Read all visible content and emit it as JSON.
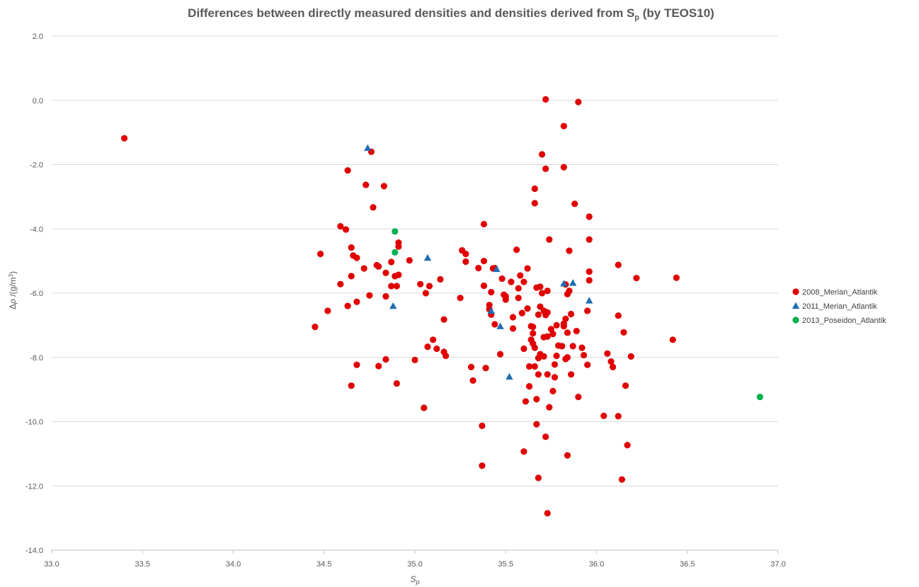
{
  "chart_data": {
    "type": "scatter",
    "title": "Differences between directly measured densities and densities derived from S",
    "title_sub": "p",
    "title_suffix": " (by TEOS10)",
    "xlabel": "S",
    "xlabel_sub": "p",
    "ylabel_prefix": "Δ",
    "ylabel_rho": "ρ",
    "ylabel_suffix": " /(g/m",
    "ylabel_sup": "3",
    "ylabel_close": ")",
    "xlim": [
      33.0,
      37.0
    ],
    "ylim": [
      -14.0,
      2.0
    ],
    "x_ticks": [
      "33.0",
      "33.5",
      "34.0",
      "34.5",
      "35.0",
      "35.5",
      "36.0",
      "36.5",
      "37.0"
    ],
    "y_ticks": [
      "2.0",
      "0.0",
      "-2.0",
      "-4.0",
      "-6.0",
      "-8.0",
      "-10.0",
      "-12.0",
      "-14.0"
    ],
    "grid": "horizontal",
    "legend_position": "right",
    "series": [
      {
        "name": "2008_Merian_Atlantik",
        "color": "#e00000",
        "marker": "circle",
        "points": [
          [
            33.4,
            -1.18
          ],
          [
            34.45,
            -7.05
          ],
          [
            34.48,
            -4.78
          ],
          [
            34.52,
            -6.55
          ],
          [
            34.59,
            -3.92
          ],
          [
            34.59,
            -5.72
          ],
          [
            34.62,
            -4.02
          ],
          [
            34.63,
            -2.18
          ],
          [
            34.63,
            -6.4
          ],
          [
            34.65,
            -4.58
          ],
          [
            34.66,
            -4.83
          ],
          [
            34.65,
            -5.47
          ],
          [
            34.65,
            -8.88
          ],
          [
            34.68,
            -4.9
          ],
          [
            34.68,
            -6.27
          ],
          [
            34.68,
            -8.23
          ],
          [
            34.72,
            -5.23
          ],
          [
            34.73,
            -2.63
          ],
          [
            34.75,
            -6.07
          ],
          [
            34.76,
            -1.6
          ],
          [
            34.77,
            -3.33
          ],
          [
            34.79,
            -5.13
          ],
          [
            34.8,
            -5.17
          ],
          [
            34.8,
            -8.27
          ],
          [
            34.83,
            -2.67
          ],
          [
            34.84,
            -5.37
          ],
          [
            34.84,
            -6.1
          ],
          [
            34.84,
            -8.06
          ],
          [
            34.87,
            -5.03
          ],
          [
            34.87,
            -5.78
          ],
          [
            34.89,
            -5.47
          ],
          [
            34.9,
            -5.78
          ],
          [
            34.9,
            -8.81
          ],
          [
            34.91,
            -4.43
          ],
          [
            34.91,
            -4.55
          ],
          [
            34.91,
            -5.43
          ],
          [
            34.97,
            -4.98
          ],
          [
            35.0,
            -8.08
          ],
          [
            35.03,
            -5.72
          ],
          [
            35.05,
            -9.57
          ],
          [
            35.06,
            -6.0
          ],
          [
            35.07,
            -7.67
          ],
          [
            35.08,
            -5.78
          ],
          [
            35.1,
            -7.45
          ],
          [
            35.12,
            -7.73
          ],
          [
            35.14,
            -5.57
          ],
          [
            35.16,
            -6.82
          ],
          [
            35.16,
            -7.83
          ],
          [
            35.17,
            -7.95
          ],
          [
            35.25,
            -6.15
          ],
          [
            35.26,
            -4.67
          ],
          [
            35.28,
            -4.78
          ],
          [
            35.28,
            -5.02
          ],
          [
            35.31,
            -8.3
          ],
          [
            35.32,
            -8.72
          ],
          [
            35.35,
            -5.22
          ],
          [
            35.37,
            -10.13
          ],
          [
            35.37,
            -11.37
          ],
          [
            35.38,
            -3.85
          ],
          [
            35.38,
            -5.0
          ],
          [
            35.38,
            -5.77
          ],
          [
            35.39,
            -8.33
          ],
          [
            35.41,
            -6.37
          ],
          [
            35.41,
            -6.5
          ],
          [
            35.42,
            -5.97
          ],
          [
            35.42,
            -6.67
          ],
          [
            35.43,
            -5.23
          ],
          [
            35.44,
            -5.22
          ],
          [
            35.44,
            -6.97
          ],
          [
            35.47,
            -7.9
          ],
          [
            35.48,
            -5.55
          ],
          [
            35.49,
            -6.05
          ],
          [
            35.5,
            -6.1
          ],
          [
            35.5,
            -6.2
          ],
          [
            35.53,
            -5.65
          ],
          [
            35.54,
            -6.75
          ],
          [
            35.54,
            -7.1
          ],
          [
            35.56,
            -4.65
          ],
          [
            35.57,
            -5.85
          ],
          [
            35.57,
            -6.15
          ],
          [
            35.58,
            -5.45
          ],
          [
            35.59,
            -6.62
          ],
          [
            35.6,
            -5.65
          ],
          [
            35.6,
            -7.73
          ],
          [
            35.6,
            -10.93
          ],
          [
            35.61,
            -9.37
          ],
          [
            35.62,
            -5.23
          ],
          [
            35.62,
            -6.48
          ],
          [
            35.63,
            -8.28
          ],
          [
            35.63,
            -8.9
          ],
          [
            35.64,
            -7.03
          ],
          [
            35.64,
            -7.45
          ],
          [
            35.65,
            -7.57
          ],
          [
            35.65,
            -7.25
          ],
          [
            35.65,
            -7.05
          ],
          [
            35.66,
            -2.75
          ],
          [
            35.66,
            -3.2
          ],
          [
            35.66,
            -7.7
          ],
          [
            35.66,
            -8.28
          ],
          [
            35.67,
            -5.83
          ],
          [
            35.67,
            -9.3
          ],
          [
            35.67,
            -10.08
          ],
          [
            35.68,
            -6.67
          ],
          [
            35.68,
            -8.02
          ],
          [
            35.68,
            -8.53
          ],
          [
            35.68,
            -11.75
          ],
          [
            35.69,
            -6.42
          ],
          [
            35.69,
            -7.9
          ],
          [
            35.69,
            -5.8
          ],
          [
            35.7,
            -1.68
          ],
          [
            35.7,
            -6.0
          ],
          [
            35.71,
            -7.37
          ],
          [
            35.71,
            -7.97
          ],
          [
            35.71,
            -6.55
          ],
          [
            35.72,
            0.03
          ],
          [
            35.72,
            -2.13
          ],
          [
            35.72,
            -6.68
          ],
          [
            35.72,
            -10.47
          ],
          [
            35.73,
            -5.93
          ],
          [
            35.73,
            -6.6
          ],
          [
            35.73,
            -7.35
          ],
          [
            35.73,
            -8.53
          ],
          [
            35.73,
            -12.85
          ],
          [
            35.74,
            -4.33
          ],
          [
            35.74,
            -9.55
          ],
          [
            35.75,
            -7.12
          ],
          [
            35.76,
            -7.27
          ],
          [
            35.76,
            -9.05
          ],
          [
            35.77,
            -8.62
          ],
          [
            35.77,
            -8.22
          ],
          [
            35.78,
            -7.0
          ],
          [
            35.78,
            -7.95
          ],
          [
            35.79,
            -7.63
          ],
          [
            35.81,
            -7.65
          ],
          [
            35.82,
            -0.8
          ],
          [
            35.82,
            -6.95
          ],
          [
            35.82,
            -7.03
          ],
          [
            35.82,
            -2.08
          ],
          [
            35.83,
            -5.73
          ],
          [
            35.83,
            -6.8
          ],
          [
            35.83,
            -8.05
          ],
          [
            35.84,
            -6.03
          ],
          [
            35.84,
            -7.23
          ],
          [
            35.84,
            -8.0
          ],
          [
            35.84,
            -11.05
          ],
          [
            35.85,
            -4.68
          ],
          [
            35.85,
            -5.93
          ],
          [
            35.86,
            -8.53
          ],
          [
            35.86,
            -6.65
          ],
          [
            35.87,
            -7.65
          ],
          [
            35.88,
            -3.22
          ],
          [
            35.89,
            -7.18
          ],
          [
            35.9,
            -0.05
          ],
          [
            35.9,
            -9.23
          ],
          [
            35.92,
            -7.7
          ],
          [
            35.93,
            -7.93
          ],
          [
            35.95,
            -6.55
          ],
          [
            35.95,
            -8.23
          ],
          [
            35.96,
            -3.62
          ],
          [
            35.96,
            -4.33
          ],
          [
            35.96,
            -5.33
          ],
          [
            35.96,
            -5.6
          ],
          [
            36.04,
            -9.82
          ],
          [
            36.06,
            -7.88
          ],
          [
            36.08,
            -8.13
          ],
          [
            36.09,
            -8.3
          ],
          [
            36.12,
            -5.12
          ],
          [
            36.12,
            -6.7
          ],
          [
            36.12,
            -9.83
          ],
          [
            36.14,
            -11.8
          ],
          [
            36.15,
            -7.22
          ],
          [
            36.16,
            -8.88
          ],
          [
            36.17,
            -10.73
          ],
          [
            36.19,
            -7.97
          ],
          [
            36.22,
            -5.53
          ],
          [
            36.42,
            -7.45
          ],
          [
            36.44,
            -5.52
          ]
        ]
      },
      {
        "name": "2011_Merian_Atlantik",
        "color": "#1f6db2",
        "marker": "triangle",
        "points": [
          [
            34.74,
            -1.48
          ],
          [
            34.88,
            -6.4
          ],
          [
            35.07,
            -4.9
          ],
          [
            35.42,
            -6.55
          ],
          [
            35.45,
            -5.25
          ],
          [
            35.47,
            -7.03
          ],
          [
            35.52,
            -8.6
          ],
          [
            35.82,
            -5.7
          ],
          [
            35.87,
            -5.68
          ],
          [
            35.96,
            -6.23
          ]
        ]
      },
      {
        "name": "2013_Poseidon_Atlantik",
        "color": "#00b050",
        "marker": "circle",
        "points": [
          [
            34.89,
            -4.08
          ],
          [
            34.89,
            -4.73
          ],
          [
            36.9,
            -9.23
          ]
        ]
      }
    ]
  }
}
